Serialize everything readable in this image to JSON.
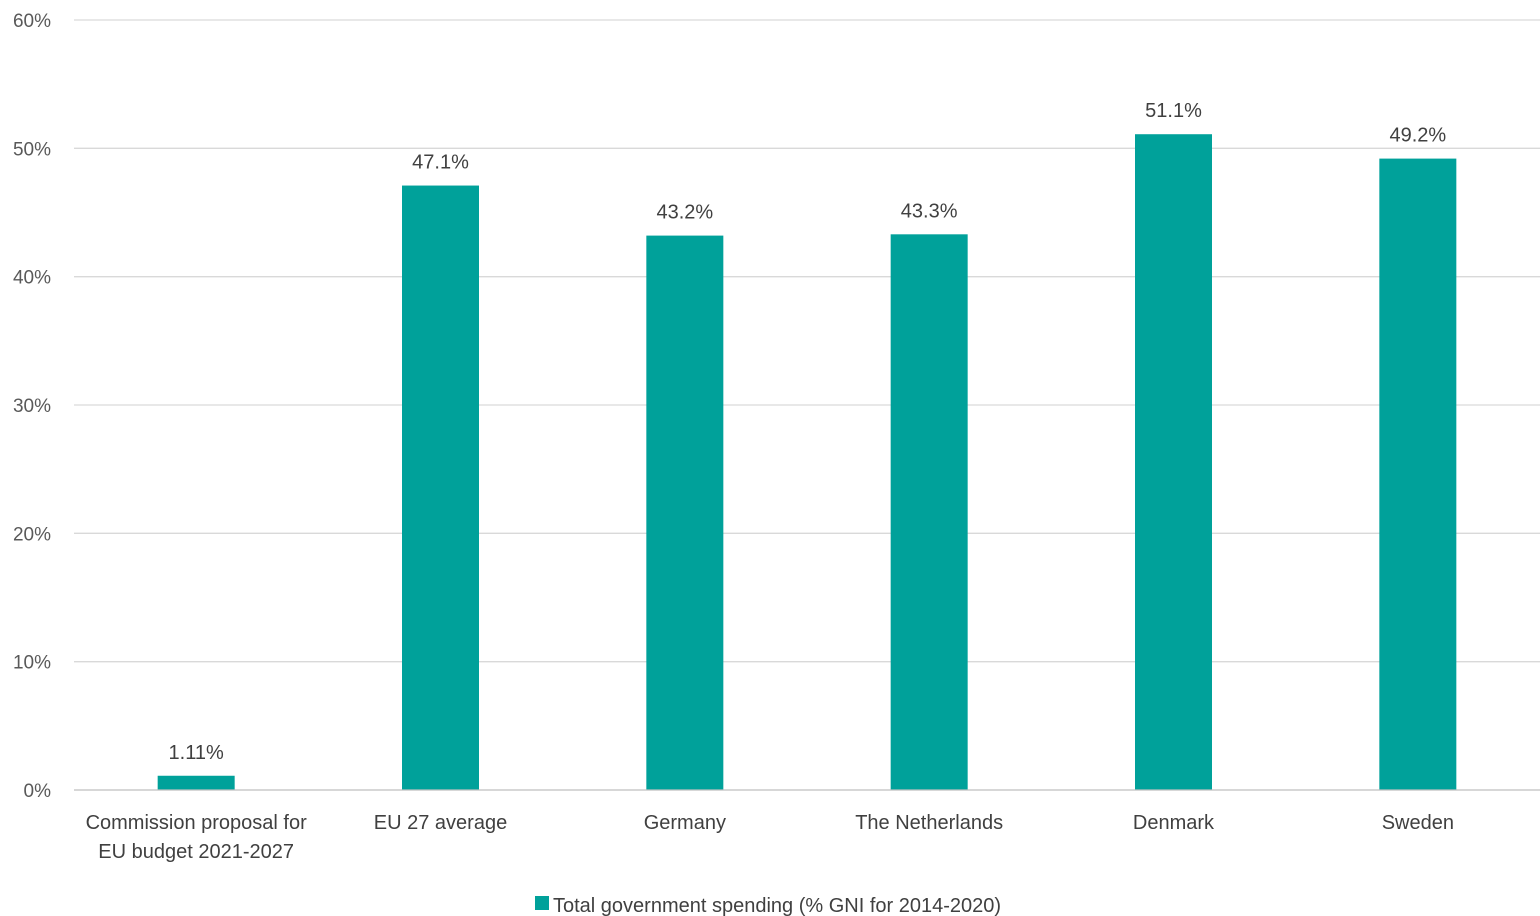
{
  "chart_data": {
    "type": "bar",
    "categories": [
      [
        "Commission proposal for",
        "EU budget 2021-2027"
      ],
      [
        "EU 27 average"
      ],
      [
        "Germany"
      ],
      [
        "The Netherlands"
      ],
      [
        "Denmark"
      ],
      [
        "Sweden"
      ]
    ],
    "series": [
      {
        "name": "Total government spending (% GNI for 2014-2020)",
        "values": [
          1.11,
          47.1,
          43.2,
          43.3,
          51.1,
          49.2
        ],
        "labels": [
          "1.11%",
          "47.1%",
          "43.2%",
          "43.3%",
          "51.1%",
          "49.2%"
        ],
        "color": "#00a19a"
      }
    ],
    "ylim": [
      0,
      60
    ],
    "yticks": [
      0,
      10,
      20,
      30,
      40,
      50,
      60
    ],
    "ytick_labels": [
      "0%",
      "10%",
      "20%",
      "30%",
      "40%",
      "50%",
      "60%"
    ],
    "grid": true,
    "legend_position": "bottom",
    "gridline_color": "#d9d9d9"
  }
}
